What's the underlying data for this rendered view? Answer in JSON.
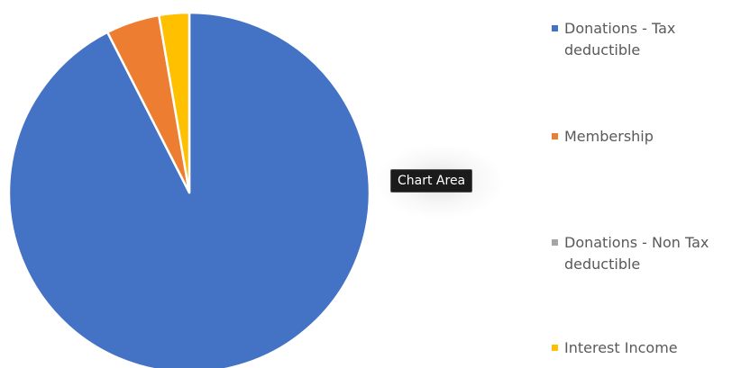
{
  "chart_data": {
    "type": "pie",
    "title": "",
    "categories": [
      "Donations - Tax deductible",
      "Membership",
      "Donations - Non Tax deductible",
      "Interest Income"
    ],
    "values": [
      92.5,
      4.8,
      0.0,
      2.7
    ],
    "colors": [
      "#4472C4",
      "#ED7D31",
      "#A5A5A5",
      "#FFC000"
    ],
    "legend_position": "right"
  },
  "tooltip": {
    "text": "Chart Area"
  }
}
